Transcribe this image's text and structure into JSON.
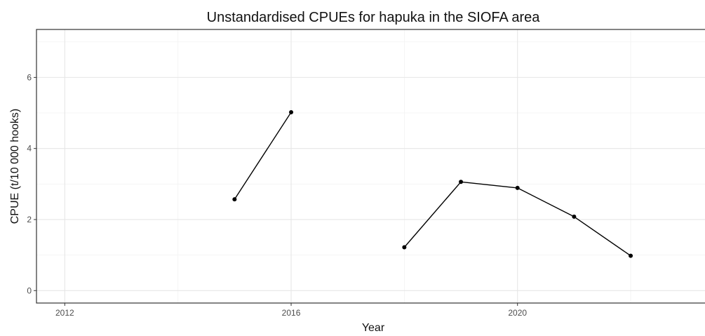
{
  "chart_data": {
    "type": "line",
    "title": "Unstandardised CPUEs for hapuka in the SIOFA area",
    "xlabel": "Year",
    "ylabel": "CPUE (t/10 000 hooks)",
    "xlim": [
      2011.5,
      2023.4
    ],
    "ylim": [
      -0.35,
      7.35
    ],
    "x_ticks": [
      2012,
      2016,
      2020
    ],
    "x_tick_labels": [
      "2012",
      "2016",
      "2020"
    ],
    "y_ticks": [
      0,
      2,
      4,
      6
    ],
    "y_tick_labels": [
      "0",
      "2",
      "4",
      "6"
    ],
    "grid": true,
    "series": [
      {
        "x": [
          2015,
          2016,
          2018,
          2019,
          2020,
          2021,
          2022
        ],
        "y": [
          2.57,
          5.02,
          1.22,
          3.06,
          2.89,
          2.08,
          0.98
        ]
      }
    ],
    "colors": {
      "line": "#000000",
      "point": "#000000"
    }
  }
}
